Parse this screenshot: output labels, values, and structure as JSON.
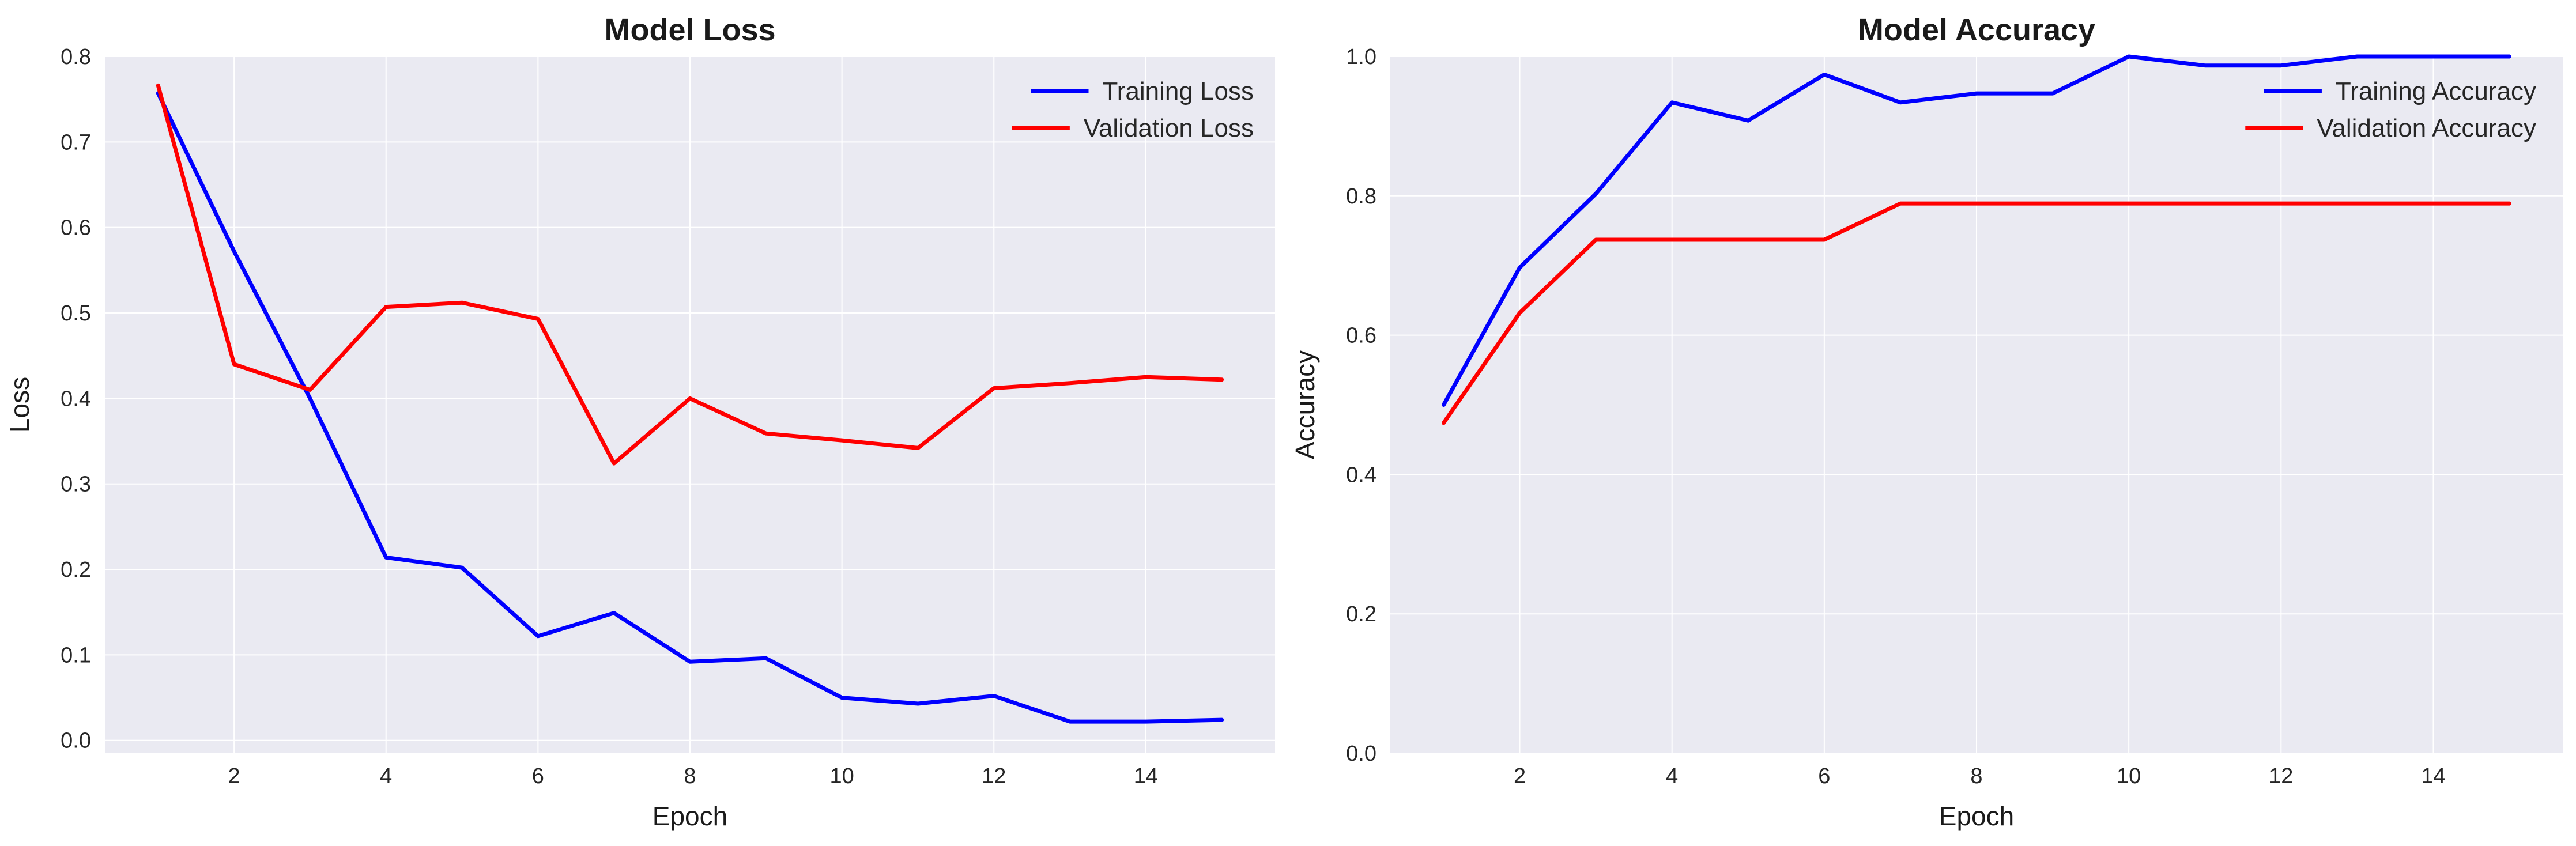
{
  "chart_data": [
    {
      "type": "line",
      "title": "Model Loss",
      "xlabel": "Epoch",
      "ylabel": "Loss",
      "xlim": [
        0.3,
        15.7
      ],
      "ylim": [
        -0.015,
        0.8
      ],
      "xticks": [
        2,
        4,
        6,
        8,
        10,
        12,
        14
      ],
      "yticks": [
        0.0,
        0.1,
        0.2,
        0.3,
        0.4,
        0.5,
        0.6,
        0.7,
        0.8
      ],
      "ytick_decimals": 1,
      "x": [
        1,
        2,
        3,
        4,
        5,
        6,
        7,
        8,
        9,
        10,
        11,
        12,
        13,
        14,
        15
      ],
      "series": [
        {
          "name": "Training Loss",
          "color": "#0000ff",
          "values": [
            0.757,
            0.572,
            0.4,
            0.214,
            0.202,
            0.122,
            0.149,
            0.092,
            0.096,
            0.05,
            0.043,
            0.052,
            0.022,
            0.022,
            0.024
          ]
        },
        {
          "name": "Validation Loss",
          "color": "#ff0000",
          "values": [
            0.766,
            0.44,
            0.41,
            0.507,
            0.512,
            0.493,
            0.324,
            0.4,
            0.359,
            0.351,
            0.342,
            0.412,
            0.418,
            0.425,
            0.422
          ]
        }
      ],
      "legend": "top-right",
      "grid": true
    },
    {
      "type": "line",
      "title": "Model Accuracy",
      "xlabel": "Epoch",
      "ylabel": "Accuracy",
      "xlim": [
        0.3,
        15.7
      ],
      "ylim": [
        0.0,
        1.0
      ],
      "xticks": [
        2,
        4,
        6,
        8,
        10,
        12,
        14
      ],
      "yticks": [
        0.0,
        0.2,
        0.4,
        0.6,
        0.8,
        1.0
      ],
      "ytick_decimals": 1,
      "x": [
        1,
        2,
        3,
        4,
        5,
        6,
        7,
        8,
        9,
        10,
        11,
        12,
        13,
        14,
        15
      ],
      "series": [
        {
          "name": "Training Accuracy",
          "color": "#0000ff",
          "values": [
            0.5,
            0.697,
            0.803,
            0.934,
            0.908,
            0.974,
            0.934,
            0.947,
            0.947,
            1.0,
            0.987,
            0.987,
            1.0,
            1.0,
            1.0
          ]
        },
        {
          "name": "Validation Accuracy",
          "color": "#ff0000",
          "values": [
            0.474,
            0.632,
            0.737,
            0.737,
            0.737,
            0.737,
            0.789,
            0.789,
            0.789,
            0.789,
            0.789,
            0.789,
            0.789,
            0.789,
            0.789
          ]
        }
      ],
      "legend": "top-right",
      "grid": true
    }
  ]
}
